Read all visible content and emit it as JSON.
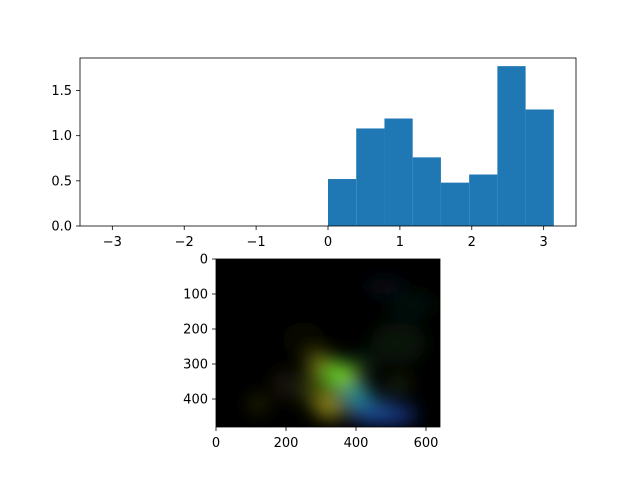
{
  "chart_data": [
    {
      "type": "bar",
      "subtype": "histogram",
      "bin_edges": [
        0.0,
        0.3927,
        0.7854,
        1.1781,
        1.5708,
        1.9635,
        2.3562,
        2.7489,
        3.1416
      ],
      "values": [
        0.52,
        1.08,
        1.19,
        0.76,
        0.48,
        0.57,
        1.77,
        1.29
      ],
      "xlim": [
        -3.45,
        3.45
      ],
      "ylim": [
        0,
        1.86
      ],
      "xticks": [
        -3,
        -2,
        -1,
        0,
        1,
        2,
        3
      ],
      "xtick_labels": [
        "−3",
        "−2",
        "−1",
        "0",
        "1",
        "2",
        "3"
      ],
      "yticks": [
        0.0,
        0.5,
        1.0,
        1.5
      ],
      "ytick_labels": [
        "0.0",
        "0.5",
        "1.0",
        "1.5"
      ],
      "bar_color": "#1f77b4",
      "title": "",
      "xlabel": "",
      "ylabel": "",
      "grid": false
    },
    {
      "type": "image",
      "image_width": 640,
      "image_height": 480,
      "xlim": [
        0,
        640
      ],
      "ylim": [
        480,
        0
      ],
      "xticks": [
        0,
        200,
        400,
        600
      ],
      "xtick_labels": [
        "0",
        "200",
        "400",
        "600"
      ],
      "yticks": [
        0,
        100,
        200,
        300,
        400
      ],
      "ytick_labels": [
        "0",
        "100",
        "200",
        "300",
        "400"
      ],
      "background_color": "#000000",
      "title": "",
      "xlabel": "",
      "ylabel": "",
      "blobs": [
        {
          "x": 340,
          "y": 375,
          "rx": 95,
          "ry": 80,
          "color": "#6b7a10",
          "opacity": 0.55
        },
        {
          "x": 300,
          "y": 300,
          "rx": 40,
          "ry": 30,
          "color": "#b4b420",
          "opacity": 0.6
        },
        {
          "x": 350,
          "y": 330,
          "rx": 45,
          "ry": 40,
          "color": "#3fd22a",
          "opacity": 0.85
        },
        {
          "x": 370,
          "y": 340,
          "rx": 22,
          "ry": 30,
          "color": "#b8e020",
          "opacity": 0.7
        },
        {
          "x": 320,
          "y": 420,
          "rx": 30,
          "ry": 40,
          "color": "#c8b41a",
          "opacity": 0.6
        },
        {
          "x": 400,
          "y": 390,
          "rx": 45,
          "ry": 35,
          "color": "#1a9ab4",
          "opacity": 0.75
        },
        {
          "x": 480,
          "y": 445,
          "rx": 95,
          "ry": 28,
          "color": "#1f4fbf",
          "opacity": 0.75
        },
        {
          "x": 450,
          "y": 420,
          "rx": 50,
          "ry": 25,
          "color": "#2a7ab0",
          "opacity": 0.5
        },
        {
          "x": 120,
          "y": 415,
          "rx": 20,
          "ry": 25,
          "color": "#6a6a10",
          "opacity": 0.5
        },
        {
          "x": 200,
          "y": 360,
          "rx": 40,
          "ry": 45,
          "color": "#4a3a10",
          "opacity": 0.35
        },
        {
          "x": 520,
          "y": 240,
          "rx": 80,
          "ry": 60,
          "color": "#1a3a1a",
          "opacity": 0.35
        },
        {
          "x": 560,
          "y": 130,
          "rx": 70,
          "ry": 40,
          "color": "#122a22",
          "opacity": 0.3
        },
        {
          "x": 480,
          "y": 80,
          "rx": 60,
          "ry": 25,
          "color": "#14304a",
          "opacity": 0.3
        },
        {
          "x": 250,
          "y": 230,
          "rx": 60,
          "ry": 50,
          "color": "#1a2410",
          "opacity": 0.3
        },
        {
          "x": 420,
          "y": 300,
          "rx": 30,
          "ry": 25,
          "color": "#0f6a3a",
          "opacity": 0.5
        },
        {
          "x": 520,
          "y": 360,
          "rx": 40,
          "ry": 25,
          "color": "#3a5a1a",
          "opacity": 0.4
        }
      ]
    }
  ]
}
